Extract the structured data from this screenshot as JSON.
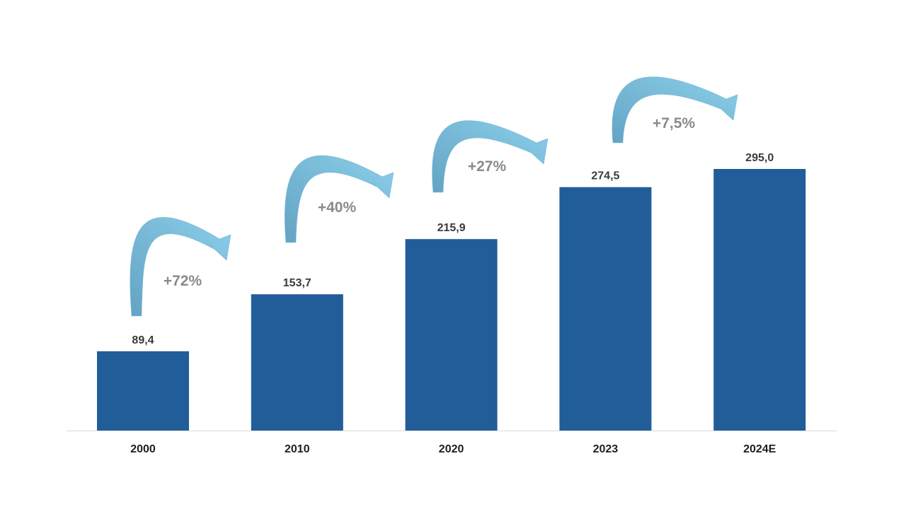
{
  "chart_data": {
    "type": "bar",
    "categories": [
      "2000",
      "2010",
      "2020",
      "2023",
      "2024E"
    ],
    "values": [
      89.4,
      153.7,
      215.9,
      274.5,
      295.0
    ],
    "value_labels": [
      "89,4",
      "153,7",
      "215,9",
      "274,5",
      "295,0"
    ],
    "growth_annotations": [
      {
        "from": "2000",
        "to": "2010",
        "label": "+72%"
      },
      {
        "from": "2010",
        "to": "2020",
        "label": "+40%"
      },
      {
        "from": "2020",
        "to": "2023",
        "label": "+27%"
      },
      {
        "from": "2023",
        "to": "2024E",
        "label": "+7,5%"
      }
    ],
    "ylim": [
      0,
      300
    ],
    "grid": false,
    "legend": "none"
  },
  "colors": {
    "bar": "#215D99",
    "arrow": "#86CDEA",
    "arrow_shade": "#5B9FC0",
    "axis_line": "#D9D9D9",
    "value_text": "#3A3A3A",
    "category_text": "#1E1E1E",
    "growth_text": "#8A8A8A"
  }
}
